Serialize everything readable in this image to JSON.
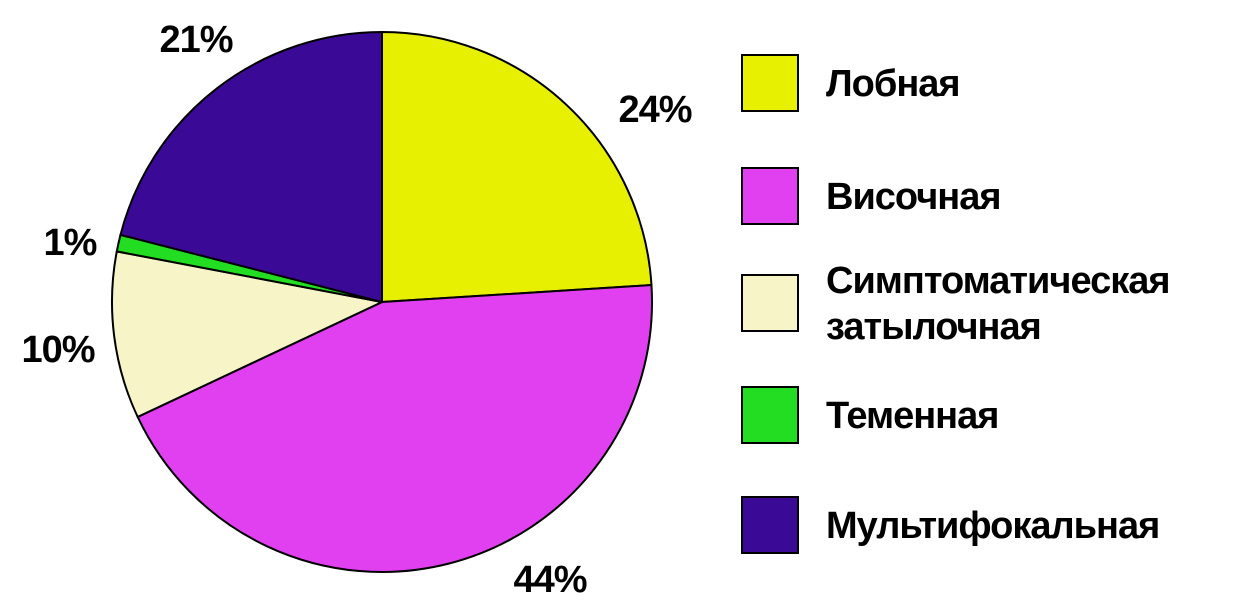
{
  "chart_data": {
    "type": "pie",
    "title": "",
    "categories": [
      "Лобная",
      "Височная",
      "Симптоматическая затылочная",
      "Теменная",
      "Мультифокальная"
    ],
    "values": [
      24,
      44,
      10,
      1,
      21
    ],
    "value_labels": [
      "24%",
      "44%",
      "10%",
      "1%",
      "21%"
    ],
    "colors": [
      "#e6f000",
      "#e040f0",
      "#f7f5c8",
      "#22dd22",
      "#3a0a96"
    ],
    "legend": {
      "placement": "right",
      "entries": [
        {
          "lines": [
            "Лобная"
          ]
        },
        {
          "lines": [
            "Височная"
          ]
        },
        {
          "lines": [
            "Симптоматическая",
            "затылочная"
          ]
        },
        {
          "lines": [
            "Теменная"
          ]
        },
        {
          "lines": [
            "Мультифокальная"
          ]
        }
      ]
    }
  }
}
